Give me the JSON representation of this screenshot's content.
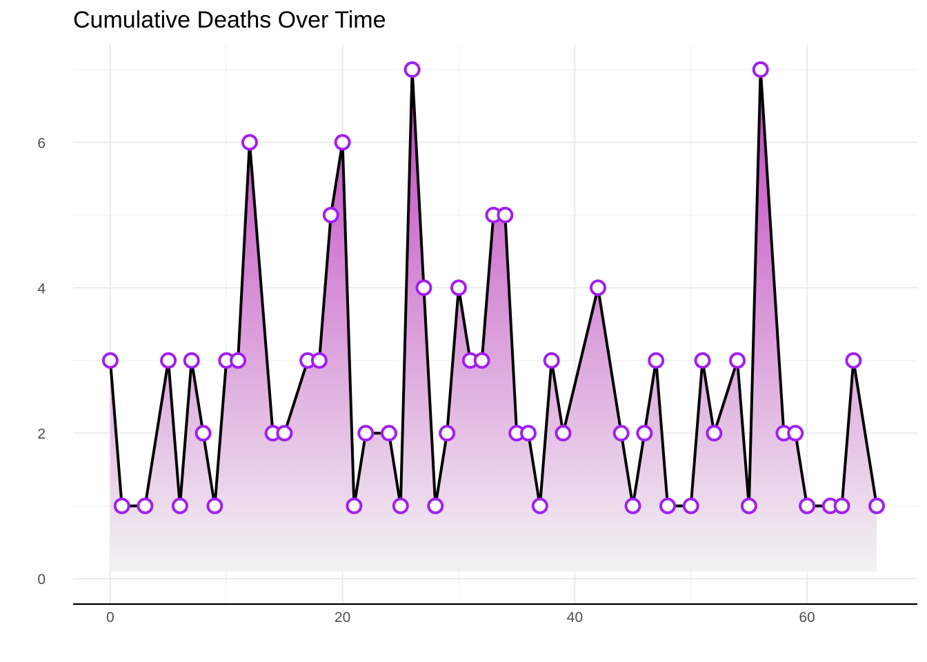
{
  "chart_data": {
    "type": "area",
    "title": "Cumulative Deaths Over Time",
    "xlabel": "",
    "ylabel": "",
    "xlim": [
      -3.2,
      69.5
    ],
    "ylim": [
      -0.35,
      7.35
    ],
    "x_ticks": [
      0,
      20,
      40,
      60
    ],
    "y_ticks": [
      0,
      2,
      4,
      6
    ],
    "grid": true,
    "legend": "none",
    "colors": {
      "line": "#000000",
      "point_stroke": "#a020f0",
      "point_fill": "#ffffff",
      "area_top": "#c040c0",
      "area_bottom": "#f3f3f3",
      "grid": "#ebebeb",
      "axis": "#000000"
    },
    "series": [
      {
        "x": [
          0,
          1,
          3,
          5,
          6,
          7,
          8,
          9,
          10,
          11,
          12,
          14,
          15,
          17,
          18,
          19,
          20,
          21,
          22,
          24,
          25,
          26,
          27,
          28,
          29,
          30,
          31,
          32,
          33,
          34,
          35,
          36,
          37,
          38,
          39,
          42,
          44,
          45,
          46,
          47,
          48,
          50,
          51,
          52,
          54,
          55,
          56,
          58,
          59,
          60,
          62,
          63,
          64,
          66
        ],
        "values": [
          3,
          1,
          1,
          3,
          1,
          3,
          2,
          1,
          3,
          3,
          6,
          2,
          2,
          3,
          3,
          5,
          6,
          1,
          2,
          2,
          1,
          7,
          4,
          1,
          2,
          4,
          3,
          3,
          5,
          5,
          2,
          2,
          1,
          3,
          2,
          4,
          2,
          1,
          2,
          3,
          1,
          1,
          3,
          2,
          3,
          1,
          7,
          2,
          2,
          1,
          1,
          1,
          3,
          1
        ]
      }
    ]
  }
}
